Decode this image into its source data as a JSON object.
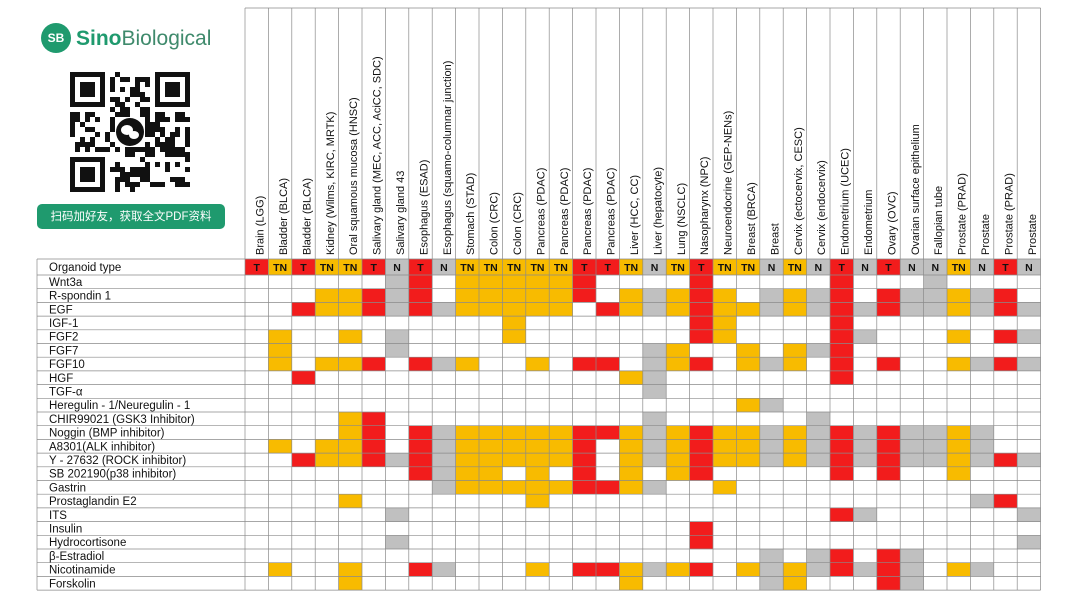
{
  "logo": {
    "badge": "SB",
    "name_a": "Sino",
    "name_b": "Biological"
  },
  "qr_caption": "扫码加好友，获取全文PDF资料",
  "table": {
    "corner": "Organoid type",
    "type_colors": {
      "T": "#f21c1c",
      "TN": "#f8bb00",
      "N": "#c0c0c0"
    },
    "columns": [
      {
        "label": "Brain (LGG)",
        "type": "T"
      },
      {
        "label": "Bladder (BLCA)",
        "type": "TN"
      },
      {
        "label": "Bladder (BLCA)",
        "type": "T"
      },
      {
        "label": "Kidney (Wilms, KIRC, MRTK)",
        "type": "TN"
      },
      {
        "label": "Oral squamous mucosa (HNSC)",
        "type": "TN"
      },
      {
        "label": "Salivary gland (MEC, ACC, AciCC, SDC)",
        "type": "T"
      },
      {
        "label": "Salivary gland 43",
        "type": "N"
      },
      {
        "label": "Esophagus (ESAD)",
        "type": "T"
      },
      {
        "label": "Esophagus (squamo-columnar junction)",
        "type": "N"
      },
      {
        "label": "Stomach (STAD)",
        "type": "TN"
      },
      {
        "label": "Colon (CRC)",
        "type": "TN"
      },
      {
        "label": "Colon (CRC)",
        "type": "TN"
      },
      {
        "label": "Pancreas (PDAC)",
        "type": "TN"
      },
      {
        "label": "Pancreas (PDAC)",
        "type": "TN"
      },
      {
        "label": "Pancreas (PDAC)",
        "type": "T"
      },
      {
        "label": "Pancreas (PDAC)",
        "type": "T"
      },
      {
        "label": "Liver (HCC, CC)",
        "type": "TN"
      },
      {
        "label": "Liver (hepatocyte)",
        "type": "N"
      },
      {
        "label": "Lung (NSCLC)",
        "type": "TN"
      },
      {
        "label": "Nasopharynx (NPC)",
        "type": "T"
      },
      {
        "label": "Neuroendocrine (GEP-NENs)",
        "type": "TN"
      },
      {
        "label": "Breast (BRCA)",
        "type": "TN"
      },
      {
        "label": "Breast",
        "type": "N"
      },
      {
        "label": "Cervix (ectocervix, CESC)",
        "type": "TN"
      },
      {
        "label": "Cervix (endocervix)",
        "type": "N"
      },
      {
        "label": "Endometrium (UCEC)",
        "type": "T"
      },
      {
        "label": "Endometrium",
        "type": "N"
      },
      {
        "label": "Ovary (OVC)",
        "type": "T"
      },
      {
        "label": "Ovarian surface epithelium",
        "type": "N"
      },
      {
        "label": "Fallopian tube",
        "type": "N"
      },
      {
        "label": "Prostate (PRAD)",
        "type": "TN"
      },
      {
        "label": "Prostate",
        "type": "N"
      },
      {
        "label": "Prostate (PRAD)",
        "type": "T"
      },
      {
        "label": "Prostate",
        "type": "N"
      }
    ],
    "rows": [
      {
        "factor": "Wnt3a",
        "filled": [
          6,
          7,
          9,
          10,
          11,
          12,
          13,
          14,
          19,
          25,
          29
        ]
      },
      {
        "factor": "R-spondin 1",
        "filled": [
          3,
          4,
          5,
          6,
          7,
          9,
          10,
          11,
          12,
          13,
          14,
          16,
          17,
          18,
          19,
          20,
          22,
          23,
          24,
          25,
          27,
          28,
          29,
          30,
          31,
          32
        ]
      },
      {
        "factor": "EGF",
        "filled": [
          2,
          3,
          4,
          5,
          6,
          7,
          8,
          9,
          10,
          11,
          12,
          13,
          15,
          16,
          17,
          18,
          19,
          20,
          21,
          22,
          23,
          24,
          25,
          26,
          27,
          28,
          29,
          30,
          31,
          32,
          33
        ]
      },
      {
        "factor": "IGF-1",
        "filled": [
          11,
          19,
          20,
          25
        ]
      },
      {
        "factor": "FGF2",
        "filled": [
          1,
          4,
          6,
          11,
          19,
          20,
          25,
          26,
          30,
          32,
          33
        ]
      },
      {
        "factor": "FGF7",
        "filled": [
          1,
          6,
          17,
          18,
          21,
          23,
          24,
          25
        ]
      },
      {
        "factor": "FGF10",
        "filled": [
          1,
          3,
          4,
          5,
          7,
          8,
          9,
          12,
          14,
          15,
          17,
          18,
          19,
          21,
          22,
          23,
          25,
          27,
          30,
          31,
          32,
          33
        ]
      },
      {
        "factor": "HGF",
        "filled": [
          2,
          16,
          17,
          25
        ]
      },
      {
        "factor": "TGF-α",
        "filled": [
          17
        ]
      },
      {
        "factor": "Heregulin - 1/Neuregulin - 1",
        "filled": [
          21,
          22
        ]
      },
      {
        "factor": "CHIR99021 (GSK3 Inhibitor)",
        "filled": [
          4,
          5,
          17,
          24
        ]
      },
      {
        "factor": "Noggin (BMP inhibitor)",
        "filled": [
          4,
          5,
          7,
          8,
          9,
          10,
          11,
          12,
          13,
          14,
          15,
          16,
          17,
          18,
          19,
          20,
          21,
          22,
          23,
          24,
          25,
          26,
          27,
          28,
          29,
          30,
          31
        ]
      },
      {
        "factor": "A8301(ALK inhibitor)",
        "filled": [
          1,
          3,
          4,
          5,
          7,
          8,
          9,
          10,
          11,
          12,
          13,
          14,
          16,
          17,
          18,
          19,
          20,
          21,
          22,
          23,
          24,
          25,
          26,
          27,
          28,
          29,
          30,
          31
        ]
      },
      {
        "factor": "Y - 27632 (ROCK inhibitor)",
        "filled": [
          2,
          3,
          4,
          5,
          6,
          7,
          8,
          9,
          10,
          11,
          12,
          13,
          14,
          16,
          17,
          18,
          19,
          20,
          21,
          22,
          23,
          24,
          25,
          26,
          27,
          28,
          29,
          30,
          31,
          32,
          33
        ]
      },
      {
        "factor": "SB 202190(p38 inhibitor)",
        "filled": [
          7,
          8,
          9,
          10,
          12,
          14,
          16,
          18,
          19,
          25,
          27,
          30
        ]
      },
      {
        "factor": "Gastrin",
        "filled": [
          8,
          9,
          10,
          11,
          12,
          13,
          14,
          15,
          16,
          17,
          20
        ]
      },
      {
        "factor": "Prostaglandin E2",
        "filled": [
          4,
          12,
          31,
          32
        ]
      },
      {
        "factor": "ITS",
        "filled": [
          6,
          25,
          26,
          33
        ]
      },
      {
        "factor": "Insulin",
        "filled": [
          19
        ]
      },
      {
        "factor": "Hydrocortisone",
        "filled": [
          6,
          19,
          33
        ]
      },
      {
        "factor": "β-Estradiol",
        "filled": [
          22,
          24,
          25,
          27,
          28
        ]
      },
      {
        "factor": "Nicotinamide",
        "filled": [
          1,
          4,
          7,
          8,
          12,
          14,
          15,
          16,
          17,
          18,
          19,
          21,
          22,
          23,
          24,
          25,
          26,
          27,
          28,
          30,
          31
        ]
      },
      {
        "factor": "Forskolin",
        "filled": [
          4,
          16,
          22,
          23,
          27,
          28
        ]
      }
    ]
  }
}
